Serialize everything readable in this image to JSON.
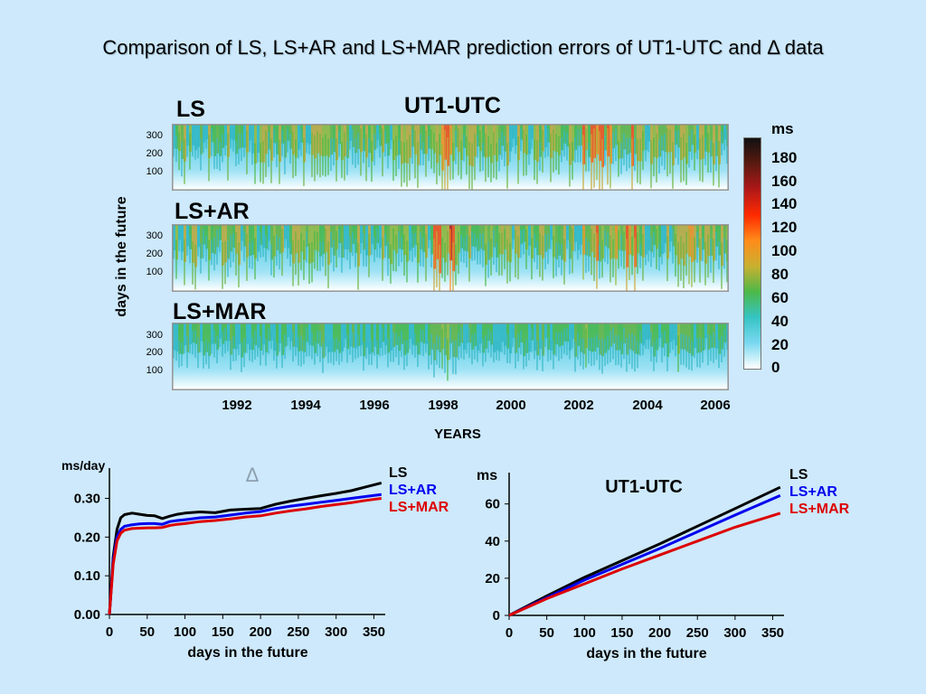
{
  "title": "Comparison of LS, LS+AR and LS+MAR prediction errors of UT1-UTC and Δ data",
  "heatmap": {
    "header": "UT1-UTC",
    "panels": [
      {
        "label": "LS",
        "ticks": [
          "300",
          "200",
          "100"
        ]
      },
      {
        "label": "LS+AR",
        "ticks": [
          "300",
          "200",
          "100"
        ]
      },
      {
        "label": "LS+MAR",
        "ticks": [
          "300",
          "200",
          "100"
        ]
      }
    ],
    "ylabel": "days in the future",
    "xlabel": "YEARS",
    "years": [
      "1992",
      "1994",
      "1996",
      "1998",
      "2000",
      "2002",
      "2004",
      "2006"
    ],
    "colorbar": {
      "unit": "ms",
      "ticks": [
        "180",
        "160",
        "140",
        "120",
        "100",
        "80",
        "60",
        "40",
        "20",
        "0"
      ],
      "colors": [
        "#111111",
        "#5a1a10",
        "#b01818",
        "#ff2a00",
        "#ff8c1a",
        "#c8b030",
        "#4cb848",
        "#36c4c4",
        "#7ad8f0",
        "#ffffff"
      ]
    }
  },
  "chart_data": [
    {
      "type": "heatmap",
      "title": "UT1-UTC",
      "panels": [
        "LS",
        "LS+AR",
        "LS+MAR"
      ],
      "xlabel": "YEARS",
      "ylabel": "days in the future",
      "xticks": [
        1992,
        1994,
        1996,
        1998,
        2000,
        2002,
        2004,
        2006
      ],
      "yticks": [
        100,
        200,
        300
      ],
      "colorbar_unit": "ms",
      "colorbar_range": [
        0,
        190
      ]
    },
    {
      "type": "line",
      "title": "Δ",
      "unit": "ms/day",
      "xlabel": "days in the future",
      "x": [
        0,
        5,
        10,
        15,
        20,
        30,
        40,
        50,
        60,
        70,
        80,
        90,
        100,
        120,
        140,
        160,
        180,
        200,
        220,
        240,
        260,
        280,
        300,
        320,
        340,
        360
      ],
      "series": [
        {
          "name": "LS",
          "color": "#000000",
          "values": [
            0,
            0.15,
            0.22,
            0.25,
            0.258,
            0.262,
            0.259,
            0.256,
            0.255,
            0.248,
            0.254,
            0.259,
            0.262,
            0.265,
            0.263,
            0.27,
            0.272,
            0.274,
            0.285,
            0.293,
            0.3,
            0.307,
            0.313,
            0.32,
            0.33,
            0.34
          ]
        },
        {
          "name": "LS+AR",
          "color": "#0000ee",
          "values": [
            0,
            0.14,
            0.2,
            0.22,
            0.228,
            0.232,
            0.234,
            0.235,
            0.235,
            0.233,
            0.24,
            0.243,
            0.245,
            0.25,
            0.252,
            0.257,
            0.262,
            0.266,
            0.274,
            0.28,
            0.285,
            0.29,
            0.295,
            0.3,
            0.305,
            0.31
          ]
        },
        {
          "name": "LS+MAR",
          "color": "#dd0000",
          "values": [
            0,
            0.13,
            0.19,
            0.21,
            0.218,
            0.222,
            0.223,
            0.224,
            0.224,
            0.225,
            0.23,
            0.233,
            0.235,
            0.24,
            0.243,
            0.247,
            0.252,
            0.255,
            0.262,
            0.268,
            0.273,
            0.279,
            0.284,
            0.289,
            0.295,
            0.3
          ]
        }
      ],
      "xticks": [
        0,
        50,
        100,
        150,
        200,
        250,
        300,
        350
      ],
      "yticks": [
        "0.00",
        "0.10",
        "0.20",
        "0.30"
      ],
      "xlim": [
        0,
        365
      ],
      "ylim": [
        0,
        0.355
      ]
    },
    {
      "type": "line",
      "title": "UT1-UTC",
      "unit": "ms",
      "xlabel": "days in the future",
      "x": [
        0,
        50,
        100,
        150,
        200,
        250,
        300,
        360
      ],
      "series": [
        {
          "name": "LS",
          "color": "#000000",
          "values": [
            0,
            10.5,
            20.5,
            29.5,
            38.5,
            48,
            57.5,
            69
          ]
        },
        {
          "name": "LS+AR",
          "color": "#0000ee",
          "values": [
            0,
            9.5,
            19,
            27.5,
            36,
            45,
            54,
            64.5
          ]
        },
        {
          "name": "LS+MAR",
          "color": "#dd0000",
          "values": [
            0,
            9,
            17,
            25,
            32.5,
            40,
            47.5,
            55
          ]
        }
      ],
      "xticks": [
        0,
        50,
        100,
        150,
        200,
        250,
        300,
        350
      ],
      "yticks": [
        "0",
        "20",
        "40",
        "60"
      ],
      "xlim": [
        0,
        365
      ],
      "ylim": [
        0,
        72
      ]
    }
  ]
}
